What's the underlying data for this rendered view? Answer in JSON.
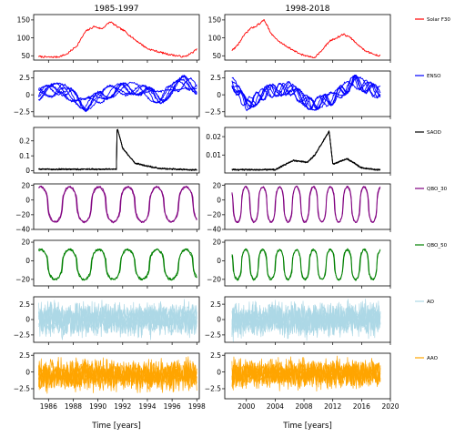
{
  "chart_data": {
    "type": "line",
    "layout": "7 rows x 2 columns of line-chart panels",
    "columns": [
      {
        "title": "1985-1997",
        "xlabel": "Time [years]",
        "xlim": [
          1984.8,
          1998.2
        ],
        "xticks": [
          1986,
          1988,
          1990,
          1992,
          1994,
          1996,
          1998
        ]
      },
      {
        "title": "1998-2018",
        "xlabel": "Time [years]",
        "xlim": [
          1997,
          2020
        ],
        "xticks": [
          2000,
          2004,
          2008,
          2012,
          2016,
          2020
        ]
      }
    ],
    "rows": [
      {
        "series": "Solar F30",
        "color": "#ff0000",
        "lines": 1,
        "left": {
          "ylim": [
            38,
            165
          ],
          "yticks": [
            50,
            100,
            150
          ],
          "x": [
            1985.2,
            1986.0,
            1986.8,
            1987.5,
            1988.3,
            1989.0,
            1989.7,
            1990.3,
            1991.0,
            1991.6,
            1992.2,
            1992.8,
            1993.4,
            1994.0,
            1994.8,
            1995.6,
            1996.4,
            1997.0,
            1997.6,
            1998.0
          ],
          "y": [
            48,
            46,
            47,
            55,
            78,
            118,
            132,
            125,
            145,
            130,
            118,
            100,
            85,
            70,
            62,
            55,
            50,
            47,
            58,
            68
          ]
        },
        "right": {
          "ylim": [
            38,
            165
          ],
          "yticks": [
            50,
            100,
            150
          ],
          "x": [
            1998.0,
            1998.8,
            1999.6,
            2000.5,
            2001.5,
            2002.5,
            2003.5,
            2004.5,
            2005.5,
            2006.5,
            2007.5,
            2008.5,
            2009.5,
            2010.5,
            2011.5,
            2012.5,
            2013.5,
            2014.5,
            2015.5,
            2016.5,
            2017.5,
            2018.5
          ],
          "y": [
            65,
            80,
            105,
            125,
            135,
            150,
            110,
            90,
            78,
            65,
            55,
            48,
            46,
            65,
            90,
            100,
            110,
            100,
            80,
            65,
            55,
            50
          ]
        }
      },
      {
        "series": "ENSO",
        "color": "#0000ff",
        "lines": 7,
        "left": {
          "ylim": [
            -3.2,
            3.5
          ],
          "yticks": [
            -2.5,
            0.0,
            2.5
          ],
          "x": [
            1985,
            1987,
            1989,
            1991,
            1993,
            1995,
            1997,
            1998
          ],
          "y": [
            0.0,
            1.0,
            -1.5,
            0.5,
            1.0,
            -0.5,
            2.0,
            1.0
          ]
        },
        "right": {
          "ylim": [
            -3.2,
            3.5
          ],
          "yticks": [
            -2.5,
            0.0,
            2.5
          ],
          "x": [
            1998,
            2000,
            2003,
            2006,
            2009,
            2012,
            2015,
            2018
          ],
          "y": [
            2.0,
            -1.5,
            0.5,
            1.0,
            -1.5,
            -0.5,
            2.0,
            0.5
          ]
        }
      },
      {
        "series": "SAOD",
        "color": "#000000",
        "lines": 3,
        "left": {
          "ylim": [
            -0.015,
            0.29
          ],
          "yticks": [
            0.0,
            0.1,
            0.2
          ],
          "x": [
            1985.0,
            1990.0,
            1991.5,
            1991.55,
            1992.0,
            1993.0,
            1995.0,
            1998.0
          ],
          "y": [
            0.01,
            0.01,
            0.01,
            0.29,
            0.15,
            0.05,
            0.015,
            0.005
          ]
        },
        "right": {
          "ylim": [
            0.0002,
            0.025
          ],
          "yticks": [
            0.01,
            0.02
          ],
          "x": [
            1998,
            2004,
            2005.5,
            2006.5,
            2008.5,
            2009.5,
            2011.5,
            2012,
            2014,
            2016,
            2018
          ],
          "y": [
            0.002,
            0.002,
            0.005,
            0.007,
            0.006,
            0.01,
            0.023,
            0.005,
            0.008,
            0.003,
            0.002
          ]
        }
      },
      {
        "series": "QBO_30",
        "color": "#800080",
        "lines": 2,
        "left": {
          "ylim": [
            -40,
            22
          ],
          "yticks": [
            -40,
            -20,
            0,
            20
          ],
          "amplitude": [
            -30,
            18
          ],
          "period": 2.35
        },
        "right": {
          "ylim": [
            -40,
            22
          ],
          "yticks": [
            -40,
            -20,
            0,
            20
          ],
          "amplitude": [
            -30,
            18
          ],
          "period": 2.35
        }
      },
      {
        "series": "QBO_50",
        "color": "#008000",
        "lines": 2,
        "left": {
          "ylim": [
            -27,
            22
          ],
          "yticks": [
            -20,
            0,
            20
          ],
          "amplitude": [
            -20,
            12
          ],
          "period": 2.35
        },
        "right": {
          "ylim": [
            -27,
            22
          ],
          "yticks": [
            -20,
            0,
            20
          ],
          "amplitude": [
            -20,
            12
          ],
          "period": 2.35
        }
      },
      {
        "series": "AO",
        "color": "#add8e6",
        "lines": 7,
        "left": {
          "ylim": [
            -3.7,
            3.7
          ],
          "yticks": [
            -2.5,
            0.0,
            2.5
          ],
          "range": [
            -3.5,
            3.5
          ]
        },
        "right": {
          "ylim": [
            -3.7,
            3.7
          ],
          "yticks": [
            -2.5,
            0.0,
            2.5
          ],
          "range": [
            -3.5,
            3.5
          ]
        }
      },
      {
        "series": "AAO",
        "color": "#ffa500",
        "lines": 7,
        "left": {
          "ylim": [
            -4.0,
            2.8
          ],
          "yticks": [
            -2.5,
            0.0,
            2.5
          ],
          "range": [
            -3.5,
            2.5
          ]
        },
        "right": {
          "ylim": [
            -4.0,
            2.8
          ],
          "yticks": [
            -2.5,
            0.0,
            2.5
          ],
          "range": [
            -3.0,
            2.5
          ]
        }
      }
    ]
  }
}
